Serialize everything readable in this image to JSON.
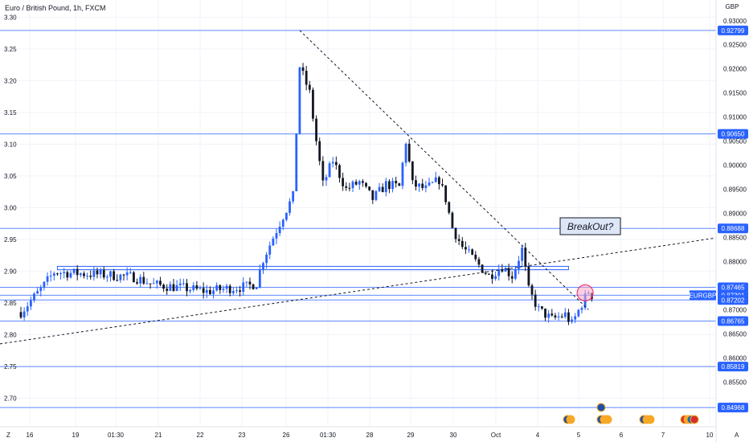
{
  "colors": {
    "up": "#2962ff",
    "down": "#131722",
    "level": "#2962ff",
    "trend": "#131722",
    "tag_bg": "#2962ff",
    "last_tag_bg": "#2962ff",
    "grid": "#f0f3fa",
    "note_bg": "#dde6f7",
    "circle": "#f7a8c4"
  },
  "chart_data": {
    "type": "candlestick",
    "title": "Euro / British Pound, 1h, FXCM",
    "currency_label": "GBP",
    "left_axis": {
      "range": [
        2.655,
        3.327
      ],
      "ticks": [
        "3.30",
        "3.25",
        "3.20",
        "3.15",
        "3.10",
        "3.05",
        "3.00",
        "2.95",
        "2.90",
        "2.85",
        "2.80",
        "2.75",
        "2.70"
      ]
    },
    "right_axis": {
      "range": [
        0.8457,
        0.9343
      ],
      "ticks": [
        "0.93000",
        "0.92500",
        "0.92000",
        "0.91500",
        "0.91000",
        "0.90500",
        "0.90000",
        "0.89500",
        "0.89000",
        "0.88500",
        "0.88000",
        "0.87500",
        "0.87000",
        "0.86500",
        "0.86000",
        "0.85500"
      ]
    },
    "x_ticks": [
      "16",
      "19",
      "01:30",
      "21",
      "22",
      "23",
      "26",
      "01:30",
      "28",
      "29",
      "30",
      "Oct",
      "4",
      "5",
      "6",
      "7",
      "10"
    ],
    "levels": [
      {
        "price": 0.92799,
        "label": "0.92799"
      },
      {
        "price": 0.9065,
        "label": "0.90650"
      },
      {
        "price": 0.88688,
        "label": "0.88688"
      },
      {
        "price": 0.87465,
        "label": "0.87465"
      },
      {
        "price": 0.87301,
        "label": "0.87301"
      },
      {
        "price": 0.87202,
        "label": "0.87202"
      },
      {
        "price": 0.86765,
        "label": "0.86765"
      },
      {
        "price": 0.85819,
        "label": "0.85819"
      },
      {
        "price": 0.84968,
        "label": "0.84968"
      }
    ],
    "last_price": {
      "symbol": "EURGBP",
      "price": 0.87301
    },
    "annotation": "BreakOut?",
    "anchors": [
      {
        "t": 0,
        "p": 0.8695
      },
      {
        "t": 6,
        "p": 0.8742
      },
      {
        "t": 10,
        "p": 0.8778
      },
      {
        "t": 18,
        "p": 0.8775
      },
      {
        "t": 26,
        "p": 0.8772
      },
      {
        "t": 34,
        "p": 0.8768
      },
      {
        "t": 40,
        "p": 0.8752
      },
      {
        "t": 48,
        "p": 0.8746
      },
      {
        "t": 56,
        "p": 0.8738
      },
      {
        "t": 62,
        "p": 0.8744
      },
      {
        "t": 68,
        "p": 0.8748
      },
      {
        "t": 71,
        "p": 0.8755
      },
      {
        "t": 73,
        "p": 0.8805
      },
      {
        "t": 76,
        "p": 0.885
      },
      {
        "t": 79,
        "p": 0.8895
      },
      {
        "t": 82,
        "p": 0.8935
      },
      {
        "t": 84,
        "p": 0.9205
      },
      {
        "t": 87,
        "p": 0.915
      },
      {
        "t": 89,
        "p": 0.905
      },
      {
        "t": 91,
        "p": 0.896
      },
      {
        "t": 94,
        "p": 0.901
      },
      {
        "t": 98,
        "p": 0.895
      },
      {
        "t": 102,
        "p": 0.8965
      },
      {
        "t": 106,
        "p": 0.893
      },
      {
        "t": 110,
        "p": 0.896
      },
      {
        "t": 114,
        "p": 0.8955
      },
      {
        "t": 116,
        "p": 0.905
      },
      {
        "t": 118,
        "p": 0.896
      },
      {
        "t": 122,
        "p": 0.895
      },
      {
        "t": 126,
        "p": 0.897
      },
      {
        "t": 128,
        "p": 0.893
      },
      {
        "t": 130,
        "p": 0.887
      },
      {
        "t": 133,
        "p": 0.883
      },
      {
        "t": 137,
        "p": 0.88
      },
      {
        "t": 141,
        "p": 0.877
      },
      {
        "t": 145,
        "p": 0.879
      },
      {
        "t": 148,
        "p": 0.877
      },
      {
        "t": 151,
        "p": 0.8825
      },
      {
        "t": 153,
        "p": 0.874
      },
      {
        "t": 156,
        "p": 0.87
      },
      {
        "t": 160,
        "p": 0.868
      },
      {
        "t": 164,
        "p": 0.869
      },
      {
        "t": 166,
        "p": 0.867
      },
      {
        "t": 169,
        "p": 0.8712
      },
      {
        "t": 171,
        "p": 0.8738
      },
      {
        "t": 172,
        "p": 0.873
      }
    ],
    "events": [
      {
        "x": "5",
        "count": 2
      },
      {
        "x": "5",
        "count": 3
      },
      {
        "x": "7",
        "count": 3
      },
      {
        "x": "10",
        "count": 4
      }
    ]
  }
}
